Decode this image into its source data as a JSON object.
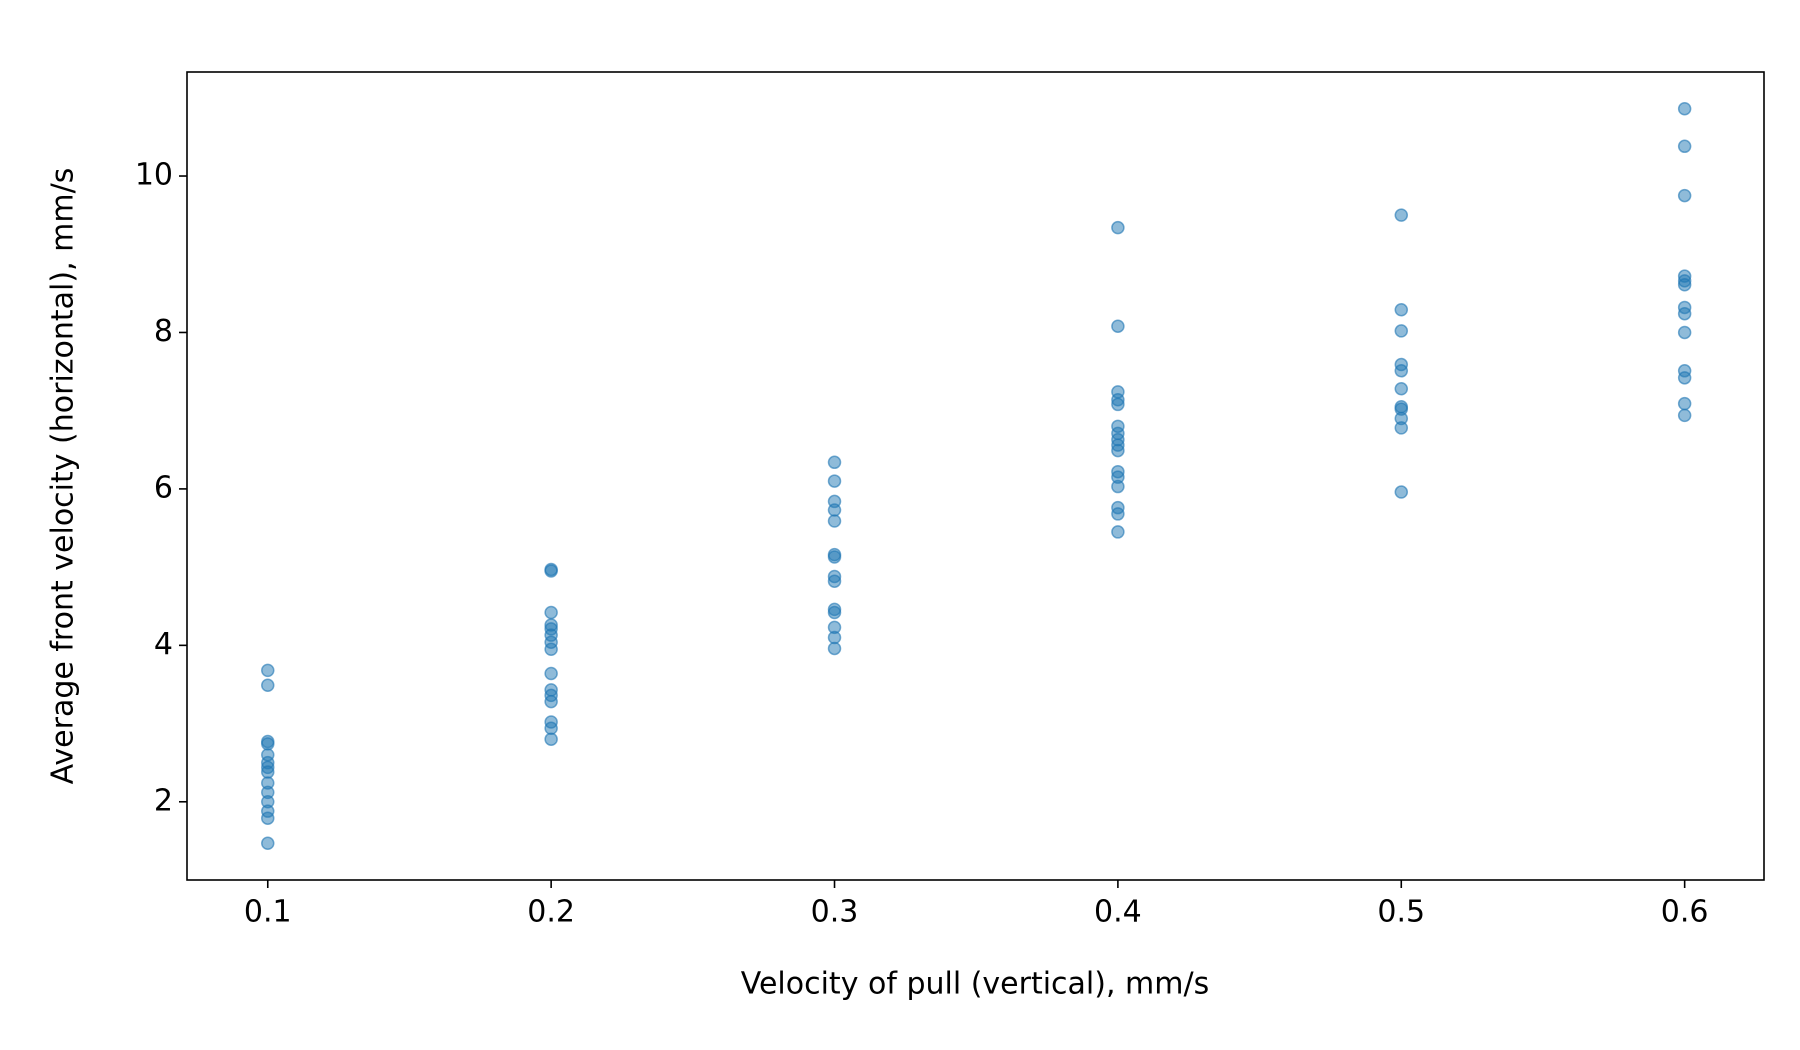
{
  "chart_data": {
    "type": "scatter",
    "x_label": "Velocity of pull (vertical), mm/s",
    "y_label": "Average front velocity (horizontal), mm/s",
    "x": [
      0.1,
      0.1,
      0.1,
      0.1,
      0.1,
      0.1,
      0.1,
      0.1,
      0.1,
      0.1,
      0.1,
      0.1,
      0.1,
      0.1,
      0.2,
      0.2,
      0.2,
      0.2,
      0.2,
      0.2,
      0.2,
      0.2,
      0.2,
      0.2,
      0.2,
      0.2,
      0.2,
      0.2,
      0.2,
      0.3,
      0.3,
      0.3,
      0.3,
      0.3,
      0.3,
      0.3,
      0.3,
      0.3,
      0.3,
      0.3,
      0.3,
      0.3,
      0.3,
      0.4,
      0.4,
      0.4,
      0.4,
      0.4,
      0.4,
      0.4,
      0.4,
      0.4,
      0.4,
      0.4,
      0.4,
      0.4,
      0.4,
      0.4,
      0.4,
      0.5,
      0.5,
      0.5,
      0.5,
      0.5,
      0.5,
      0.5,
      0.5,
      0.5,
      0.5,
      0.5,
      0.6,
      0.6,
      0.6,
      0.6,
      0.6,
      0.6,
      0.6,
      0.6,
      0.6,
      0.6,
      0.6,
      0.6,
      0.6
    ],
    "values": [
      3.68,
      3.49,
      2.77,
      2.74,
      2.6,
      2.5,
      2.44,
      2.38,
      2.24,
      2.12,
      2.0,
      1.88,
      1.79,
      1.47,
      4.97,
      4.95,
      4.42,
      4.26,
      4.21,
      4.13,
      4.04,
      3.95,
      3.64,
      3.43,
      3.36,
      3.28,
      3.02,
      2.94,
      2.8,
      6.34,
      6.1,
      5.84,
      5.73,
      5.59,
      5.16,
      5.13,
      4.88,
      4.82,
      4.46,
      4.42,
      4.23,
      4.1,
      3.96,
      9.34,
      8.08,
      7.24,
      7.14,
      7.08,
      6.8,
      6.71,
      6.63,
      6.56,
      6.49,
      6.22,
      6.15,
      6.03,
      5.76,
      5.68,
      5.45,
      9.5,
      8.29,
      8.02,
      7.59,
      7.51,
      7.28,
      7.05,
      7.02,
      6.9,
      6.78,
      5.96,
      10.86,
      10.38,
      9.75,
      8.72,
      8.66,
      8.61,
      8.32,
      8.24,
      8.0,
      7.51,
      7.42,
      7.09,
      6.94
    ],
    "color": "#1f77b4",
    "xlim": [
      0.0715,
      0.628
    ],
    "ylim": [
      1.0,
      11.33
    ],
    "xticks": [
      0.1,
      0.2,
      0.3,
      0.4,
      0.5,
      0.6
    ],
    "yticks": [
      2,
      4,
      6,
      8,
      10
    ],
    "grid": false
  }
}
